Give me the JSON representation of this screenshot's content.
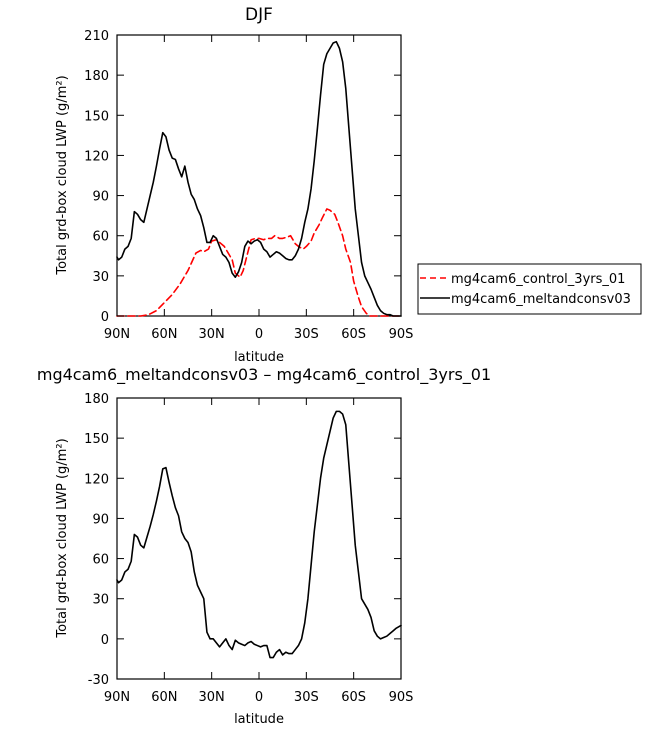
{
  "chart_data": [
    {
      "type": "line",
      "title": "DJF",
      "xlabel": "latitude",
      "ylabel": "Total grd-box cloud LWP (g/m²)",
      "xlim": [
        -90,
        90
      ],
      "x_tick_values": [
        -90,
        -60,
        -30,
        0,
        30,
        60,
        90
      ],
      "x_tick_labels": [
        "90N",
        "60N",
        "30N",
        "0",
        "30S",
        "60S",
        "90S"
      ],
      "ylim": [
        0,
        210
      ],
      "y_ticks": [
        0,
        30,
        60,
        90,
        120,
        150,
        180,
        210
      ],
      "grid": false,
      "legend_position": "right",
      "series": [
        {
          "name": "mg4cam6_control_3yrs_01",
          "color": "#ff0000",
          "dash": "dashed",
          "x": [
            -90,
            -80,
            -75,
            -70,
            -65,
            -60,
            -55,
            -50,
            -45,
            -40,
            -37,
            -35,
            -32,
            -30,
            -27,
            -25,
            -22,
            -20,
            -17,
            -15,
            -12,
            -10,
            -7,
            -5,
            -2,
            0,
            3,
            5,
            8,
            10,
            13,
            15,
            18,
            20,
            23,
            25,
            28,
            30,
            33,
            35,
            38,
            40,
            43,
            45,
            48,
            50,
            53,
            55,
            58,
            60,
            63,
            65,
            68,
            70,
            75,
            80,
            85,
            90
          ],
          "values": [
            0,
            0,
            0,
            1,
            4,
            10,
            16,
            24,
            34,
            47,
            49,
            48,
            50,
            56,
            57,
            55,
            52,
            48,
            42,
            32,
            29,
            34,
            48,
            57,
            58,
            58,
            57,
            58,
            58,
            60,
            58,
            58,
            59,
            60,
            54,
            52,
            50,
            52,
            56,
            62,
            68,
            73,
            80,
            79,
            76,
            70,
            60,
            50,
            40,
            26,
            14,
            7,
            2,
            0,
            0,
            0,
            0,
            0
          ]
        },
        {
          "name": "mg4cam6_meltandconsv03",
          "color": "#000000",
          "dash": "solid",
          "x": [
            -90,
            -89,
            -87,
            -85,
            -83,
            -81,
            -79,
            -77,
            -75,
            -73,
            -71,
            -69,
            -67,
            -65,
            -63,
            -61,
            -59,
            -57,
            -55,
            -53,
            -51,
            -49,
            -47,
            -45,
            -43,
            -41,
            -39,
            -37,
            -35,
            -33,
            -31,
            -29,
            -27,
            -25,
            -23,
            -21,
            -19,
            -17,
            -15,
            -13,
            -11,
            -9,
            -7,
            -5,
            -3,
            -1,
            1,
            3,
            5,
            7,
            9,
            11,
            13,
            15,
            17,
            19,
            21,
            23,
            25,
            27,
            29,
            31,
            33,
            35,
            37,
            39,
            41,
            43,
            45,
            47,
            49,
            51,
            53,
            55,
            57,
            59,
            61,
            63,
            65,
            67,
            69,
            71,
            73,
            75,
            77,
            79,
            81,
            83,
            85,
            87,
            90
          ],
          "values": [
            44,
            42,
            44,
            50,
            52,
            58,
            78,
            76,
            72,
            70,
            80,
            90,
            100,
            112,
            125,
            137,
            134,
            124,
            118,
            117,
            110,
            104,
            112,
            100,
            91,
            87,
            80,
            75,
            66,
            55,
            55,
            60,
            58,
            52,
            46,
            44,
            40,
            32,
            29,
            33,
            40,
            52,
            56,
            54,
            56,
            57,
            55,
            50,
            48,
            44,
            46,
            48,
            47,
            45,
            43,
            42,
            42,
            45,
            50,
            58,
            70,
            80,
            95,
            116,
            140,
            165,
            188,
            196,
            200,
            204,
            205,
            200,
            190,
            170,
            140,
            110,
            80,
            60,
            40,
            30,
            25,
            20,
            14,
            8,
            4,
            2,
            1,
            1,
            0,
            0,
            0
          ]
        }
      ]
    },
    {
      "type": "line",
      "title": "mg4cam6_meltandconsv03 – mg4cam6_control_3yrs_01",
      "xlabel": "latitude",
      "ylabel": "Total grd-box cloud LWP (g/m²)",
      "xlim": [
        -90,
        90
      ],
      "x_tick_values": [
        -90,
        -60,
        -30,
        0,
        30,
        60,
        90
      ],
      "x_tick_labels": [
        "90N",
        "60N",
        "30N",
        "0",
        "30S",
        "60S",
        "90S"
      ],
      "ylim": [
        -30,
        180
      ],
      "y_ticks": [
        -30,
        0,
        30,
        60,
        90,
        120,
        150,
        180
      ],
      "grid": false,
      "series": [
        {
          "color": "#000000",
          "dash": "solid",
          "x": [
            -90,
            -89,
            -87,
            -85,
            -83,
            -81,
            -79,
            -77,
            -75,
            -73,
            -71,
            -69,
            -67,
            -65,
            -63,
            -61,
            -59,
            -57,
            -55,
            -53,
            -51,
            -49,
            -47,
            -45,
            -43,
            -41,
            -39,
            -37,
            -35,
            -33,
            -31,
            -29,
            -27,
            -25,
            -23,
            -21,
            -19,
            -17,
            -15,
            -13,
            -11,
            -9,
            -7,
            -5,
            -3,
            -1,
            1,
            3,
            5,
            7,
            9,
            11,
            13,
            15,
            17,
            19,
            21,
            23,
            25,
            27,
            29,
            31,
            33,
            35,
            37,
            39,
            41,
            43,
            45,
            47,
            49,
            51,
            53,
            55,
            57,
            59,
            61,
            63,
            65,
            67,
            69,
            71,
            73,
            75,
            77,
            79,
            81,
            83,
            85,
            87,
            90
          ],
          "values": [
            44,
            42,
            44,
            50,
            52,
            58,
            78,
            76,
            70,
            68,
            76,
            84,
            93,
            103,
            114,
            127,
            128,
            117,
            107,
            98,
            92,
            80,
            75,
            72,
            65,
            50,
            40,
            35,
            30,
            5,
            0,
            0,
            -3,
            -6,
            -3,
            0,
            -5,
            -8,
            -1,
            -3,
            -4,
            -5,
            -3,
            -2,
            -4,
            -5,
            -6,
            -5,
            -5,
            -14,
            -14,
            -10,
            -8,
            -12,
            -10,
            -11,
            -11,
            -8,
            -5,
            0,
            12,
            30,
            55,
            80,
            100,
            120,
            135,
            145,
            155,
            165,
            170,
            170,
            168,
            160,
            130,
            100,
            70,
            50,
            30,
            26,
            22,
            16,
            6,
            2,
            0,
            1,
            2,
            4,
            6,
            8,
            10
          ]
        }
      ]
    }
  ]
}
